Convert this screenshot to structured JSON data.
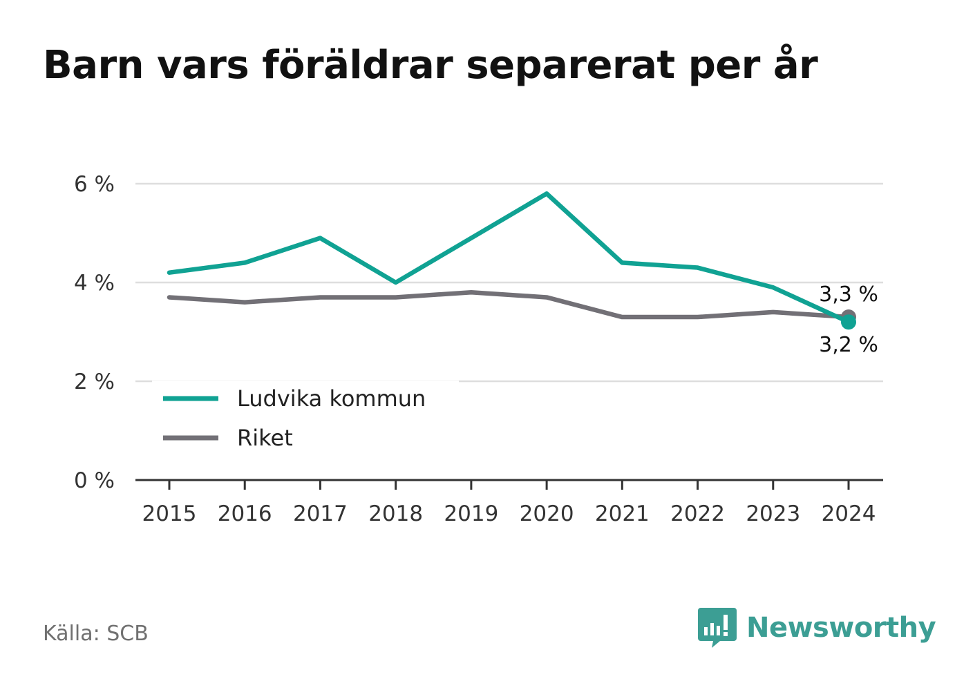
{
  "chart_data": {
    "type": "line",
    "title": "Barn vars föräldrar separerat per år",
    "x": [
      "2015",
      "2016",
      "2017",
      "2018",
      "2019",
      "2020",
      "2021",
      "2022",
      "2023",
      "2024"
    ],
    "series": [
      {
        "name": "Ludvika kommun",
        "color": "#10a293",
        "values": [
          4.2,
          4.4,
          4.9,
          4.0,
          4.9,
          5.8,
          4.4,
          4.3,
          3.9,
          3.2
        ]
      },
      {
        "name": "Riket",
        "color": "#727076",
        "values": [
          3.7,
          3.6,
          3.7,
          3.7,
          3.8,
          3.7,
          3.3,
          3.3,
          3.4,
          3.3
        ]
      }
    ],
    "ylim": [
      0,
      6
    ],
    "yticks": [
      {
        "value": 0,
        "label": "0 %"
      },
      {
        "value": 2,
        "label": "2 %"
      },
      {
        "value": 4,
        "label": "4 %"
      },
      {
        "value": 6,
        "label": "6 %"
      }
    ],
    "end_labels": [
      {
        "series": "Riket",
        "label": "3,3 %"
      },
      {
        "series": "Ludvika kommun",
        "label": "3,2 %"
      }
    ],
    "grid": true,
    "legend_position": "bottom-left"
  },
  "footer": {
    "source": "Källa: SCB",
    "brand": "Newsworthy",
    "brand_color": "#3c9e94",
    "brand_icon": "bar-chart-speech-bubble-icon"
  }
}
